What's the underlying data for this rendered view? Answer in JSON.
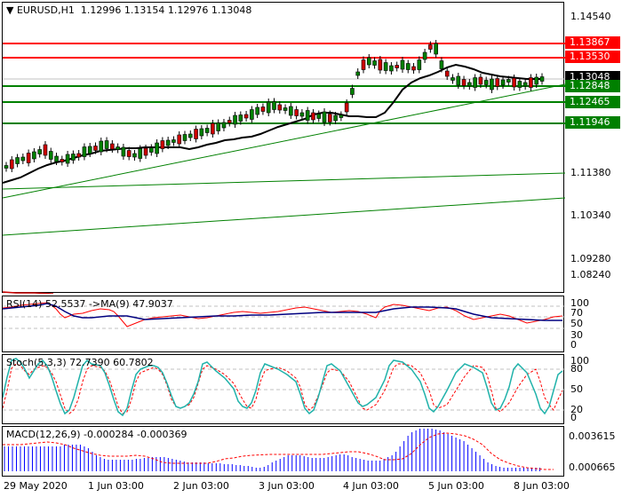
{
  "header": {
    "symbol_label": "EURUSD,H1",
    "ohlc": "1.12996 1.13154 1.12976 1.13048",
    "menu_icon": "triangle-down-icon"
  },
  "main_axis": {
    "ticks": [
      "1.14540",
      "1.11380",
      "1.10340",
      "1.09280",
      "1.08240"
    ]
  },
  "price_tags": [
    {
      "name": "resistance-2",
      "value": "1.13867",
      "color": "#ff0000"
    },
    {
      "name": "resistance-1",
      "value": "1.13530",
      "color": "#ff0000"
    },
    {
      "name": "current-price",
      "value": "1.13048",
      "color": "#000000"
    },
    {
      "name": "support-1",
      "value": "1.12848",
      "color": "#008000"
    },
    {
      "name": "support-2",
      "value": "1.12465",
      "color": "#008000"
    },
    {
      "name": "support-3",
      "value": "1.11946",
      "color": "#008000"
    }
  ],
  "rsi": {
    "title": "RSI(14) 52.5537  ->MA(9) 47.9037",
    "ticks": [
      "100",
      "70",
      "50",
      "30",
      "0"
    ]
  },
  "stoch": {
    "title": "Stoch(5,3,3) 72.7390 60.7802",
    "ticks": [
      "100",
      "80",
      "50",
      "20",
      "0"
    ]
  },
  "macd": {
    "title": "MACD(12,26,9) -0.000284 -0.000369",
    "ticks": [
      "0.003615",
      "0.000665"
    ]
  },
  "x_axis": {
    "labels": [
      "29 May 2020",
      "1 Jun 03:00",
      "2 Jun 03:00",
      "3 Jun 03:00",
      "4 Jun 03:00",
      "5 Jun 03:00",
      "8 Jun 03:00"
    ]
  },
  "colors": {
    "resistance": "#ff0000",
    "support": "#008000",
    "bull_candle": "#008000",
    "bear_candle": "#cc0000",
    "ma": "#000000",
    "rsi_line": "#ff0000",
    "rsi_ma": "#000080",
    "stoch_main": "#20b2aa",
    "stoch_signal": "#ff0000",
    "macd_hist": "#0000ff",
    "macd_signal": "#ff0000"
  },
  "chart_data": [
    {
      "type": "candlestick",
      "title": "EURUSD,H1",
      "ohlc_last": {
        "open": 1.12996,
        "high": 1.13154,
        "low": 1.12976,
        "close": 1.13048
      },
      "x_labels": [
        "29 May 2020",
        "1 Jun 03:00",
        "2 Jun 03:00",
        "3 Jun 03:00",
        "4 Jun 03:00",
        "5 Jun 03:00",
        "8 Jun 03:00"
      ],
      "y_ticks": [
        1.1454,
        1.1138,
        1.1034,
        1.0928,
        1.0824
      ],
      "horizontal_levels": {
        "resistance": [
          1.13867,
          1.1353
        ],
        "support": [
          1.12848,
          1.12465,
          1.11946
        ]
      },
      "approx_close_path": [
        1.112,
        1.1145,
        1.115,
        1.1135,
        1.114,
        1.115,
        1.116,
        1.114,
        1.115,
        1.116,
        1.117,
        1.118,
        1.119,
        1.121,
        1.122,
        1.1225,
        1.124,
        1.125,
        1.1235,
        1.123,
        1.1225,
        1.122,
        1.126,
        1.133,
        1.136,
        1.1355,
        1.136,
        1.137,
        1.1385,
        1.1345,
        1.133,
        1.132,
        1.131,
        1.1315,
        1.13,
        1.1305
      ],
      "ylim": [
        1.079,
        1.1485
      ],
      "indicators": [
        "MA(black)",
        "uptrend lines (green)"
      ]
    },
    {
      "type": "line",
      "title": "RSI(14) 52.5537 ->MA(9) 47.9037",
      "series": [
        {
          "name": "RSI(14)",
          "last": 52.5537
        },
        {
          "name": "MA(9)",
          "last": 47.9037
        }
      ],
      "levels": [
        70,
        50,
        30
      ],
      "ylim": [
        0,
        100
      ]
    },
    {
      "type": "line",
      "title": "Stoch(5,3,3) 72.7390 60.7802",
      "series": [
        {
          "name": "%K",
          "last": 72.739
        },
        {
          "name": "%D",
          "last": 60.7802
        }
      ],
      "levels": [
        80,
        50,
        20
      ],
      "ylim": [
        0,
        100
      ]
    },
    {
      "type": "bar",
      "title": "MACD(12,26,9) -0.000284 -0.000369",
      "series": [
        {
          "name": "MACD",
          "last": -0.000284
        },
        {
          "name": "Signal",
          "last": -0.000369
        }
      ],
      "y_ticks": [
        0.003615,
        0.000665
      ]
    }
  ]
}
